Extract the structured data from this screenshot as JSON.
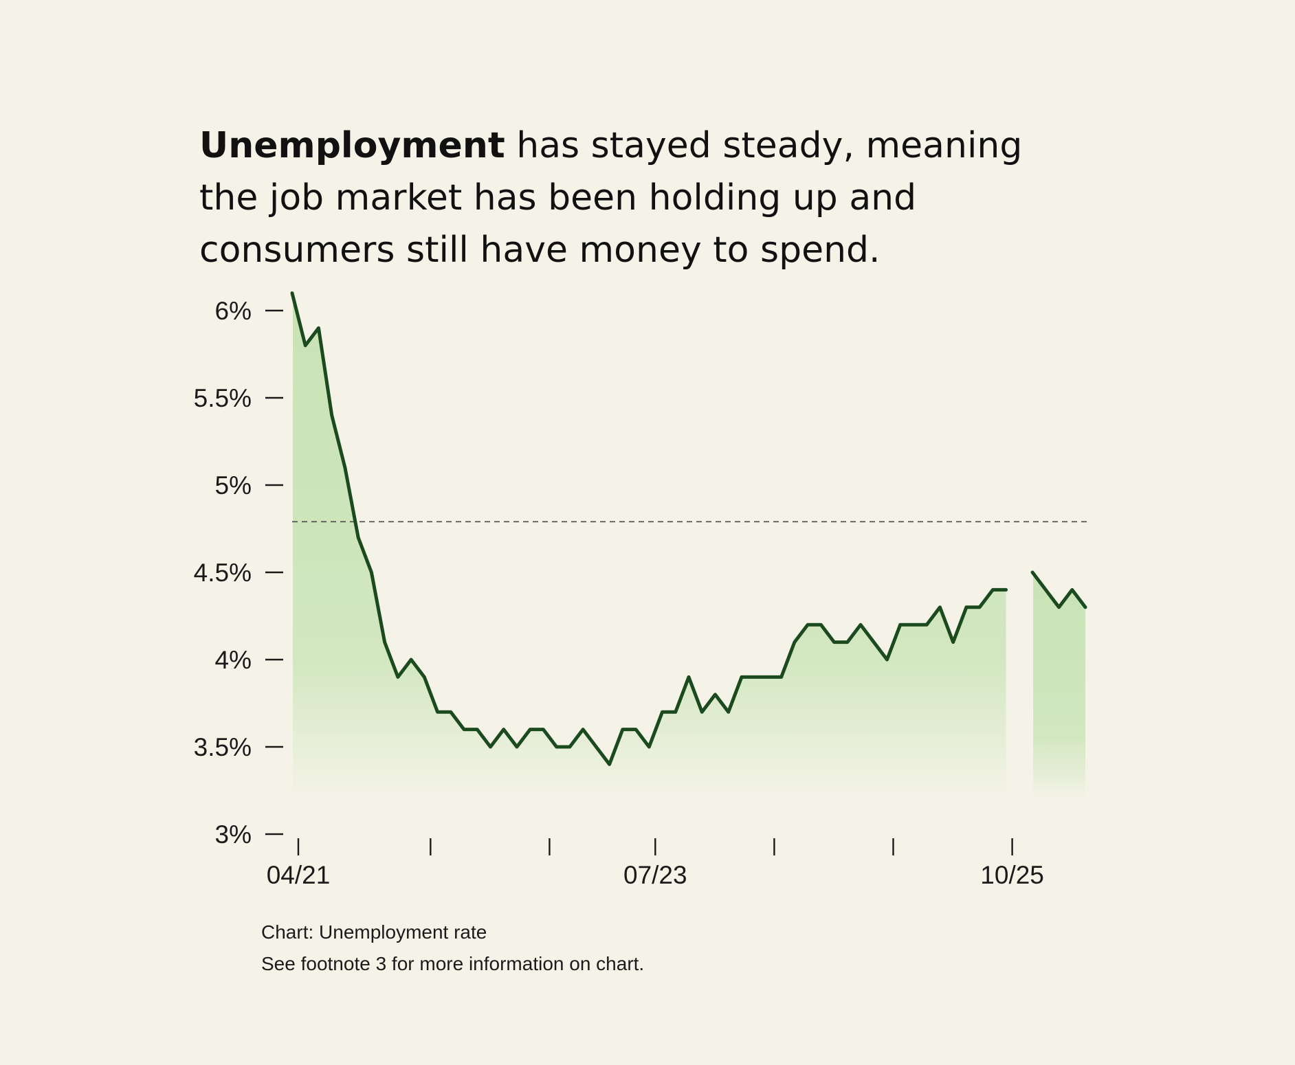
{
  "headline": {
    "bold": "Unemployment",
    "line1_rest": " has stayed steady, meaning",
    "line2": "the job market has been holding up and",
    "line3": "consumers still have money to spend."
  },
  "caption": {
    "line1": "Chart: Unemployment rate",
    "line2": "See footnote 3 for more information on chart."
  },
  "colors": {
    "background": "#f5f3e8",
    "line": "#1b4a1e",
    "fill_top": "#c8e2b5",
    "fill_bottom": "#f5f3e8",
    "reference_line": "#4a4a4a",
    "text": "#111111"
  },
  "chart_data": {
    "type": "line",
    "title": "",
    "xlabel": "",
    "ylabel": "",
    "ylim": [
      3,
      6.1
    ],
    "y_ticks": [
      {
        "value": 6,
        "label": "6%"
      },
      {
        "value": 5.5,
        "label": "5.5%"
      },
      {
        "value": 5,
        "label": "5%"
      },
      {
        "value": 4.5,
        "label": "4.5%"
      },
      {
        "value": 4,
        "label": "4%"
      },
      {
        "value": 3.5,
        "label": "3.5%"
      },
      {
        "value": 3,
        "label": "3%"
      }
    ],
    "x_start": "2021-04",
    "x_end": "2025-12",
    "x_ticks": [
      {
        "month": "2021-04",
        "label": "04/21"
      },
      {
        "month": "2022-02",
        "label": ""
      },
      {
        "month": "2022-11",
        "label": ""
      },
      {
        "month": "2023-07",
        "label": "07/23"
      },
      {
        "month": "2024-04",
        "label": ""
      },
      {
        "month": "2025-01",
        "label": ""
      },
      {
        "month": "2025-10",
        "label": "10/25"
      }
    ],
    "reference_line": {
      "y": 4.79,
      "style": "dashed"
    },
    "area_fill": true,
    "grid": false,
    "series": [
      {
        "points": [
          [
            "2021-04",
            6.1
          ],
          [
            "2021-05",
            5.8
          ],
          [
            "2021-06",
            5.9
          ],
          [
            "2021-07",
            5.4
          ],
          [
            "2021-08",
            5.1
          ],
          [
            "2021-09",
            4.7
          ],
          [
            "2021-10",
            4.5
          ],
          [
            "2021-11",
            4.1
          ],
          [
            "2021-12",
            3.9
          ],
          [
            "2022-01",
            4.0
          ],
          [
            "2022-02",
            3.9
          ],
          [
            "2022-03",
            3.7
          ],
          [
            "2022-04",
            3.7
          ],
          [
            "2022-05",
            3.6
          ],
          [
            "2022-06",
            3.6
          ],
          [
            "2022-07",
            3.5
          ],
          [
            "2022-08",
            3.6
          ],
          [
            "2022-09",
            3.5
          ],
          [
            "2022-10",
            3.6
          ],
          [
            "2022-11",
            3.6
          ],
          [
            "2022-12",
            3.5
          ],
          [
            "2023-01",
            3.5
          ],
          [
            "2023-02",
            3.6
          ],
          [
            "2023-03",
            3.5
          ],
          [
            "2023-04",
            3.4
          ],
          [
            "2023-05",
            3.6
          ],
          [
            "2023-06",
            3.6
          ],
          [
            "2023-07",
            3.5
          ],
          [
            "2023-08",
            3.7
          ],
          [
            "2023-09",
            3.7
          ],
          [
            "2023-10",
            3.9
          ],
          [
            "2023-11",
            3.7
          ],
          [
            "2023-12",
            3.8
          ],
          [
            "2024-01",
            3.7
          ],
          [
            "2024-02",
            3.9
          ],
          [
            "2024-03",
            3.9
          ],
          [
            "2024-04",
            3.9
          ],
          [
            "2024-05",
            3.9
          ],
          [
            "2024-06",
            4.1
          ],
          [
            "2024-07",
            4.2
          ],
          [
            "2024-08",
            4.2
          ],
          [
            "2024-09",
            4.1
          ],
          [
            "2024-10",
            4.1
          ],
          [
            "2024-11",
            4.2
          ],
          [
            "2024-12",
            4.1
          ],
          [
            "2025-01",
            4.0
          ],
          [
            "2025-02",
            4.2
          ],
          [
            "2025-03",
            4.2
          ],
          [
            "2025-04",
            4.2
          ],
          [
            "2025-05",
            4.3
          ],
          [
            "2025-06",
            4.1
          ],
          [
            "2025-07",
            4.3
          ],
          [
            "2025-08",
            4.3
          ],
          [
            "2025-09",
            4.4
          ],
          [
            "2025-10",
            4.4
          ],
          [
            "2025-11",
            null
          ],
          [
            "2025-12",
            4.5
          ],
          [
            "2026-01",
            4.4
          ],
          [
            "2026-02",
            4.3
          ],
          [
            "2026-03",
            4.4
          ],
          [
            "2026-04",
            4.3
          ]
        ]
      }
    ]
  }
}
